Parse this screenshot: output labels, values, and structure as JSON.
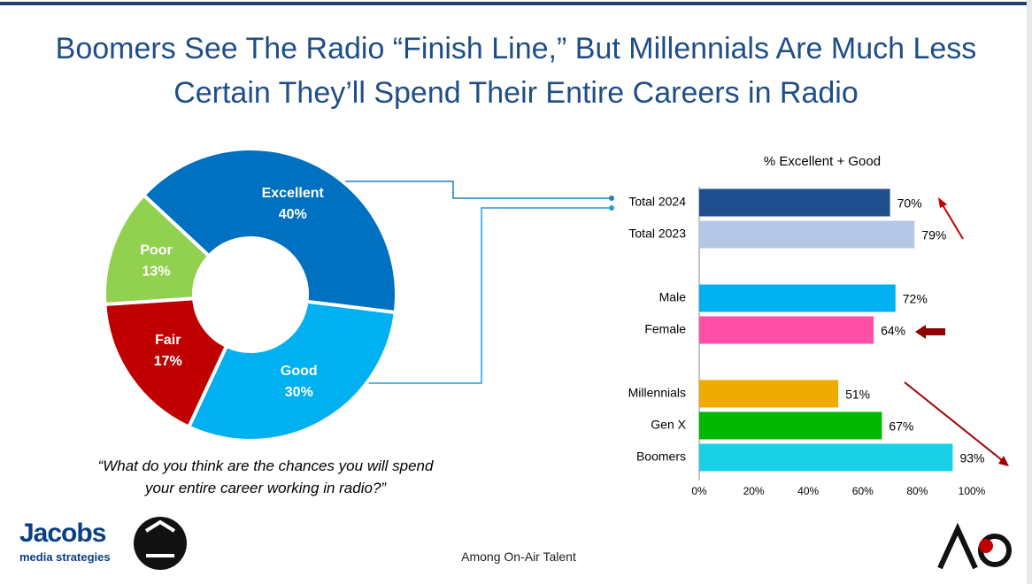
{
  "title": "Boomers See The Radio “Finish Line,” But Millennials Are Much Less Certain They’ll Spend Their Entire Careers in Radio",
  "question": "“What do you think are the chances you will spend your entire career working in radio?”",
  "footer": "Among On-Air Talent",
  "logo": {
    "name": "Jacobs",
    "tagline": "media strategies"
  },
  "chart_data": [
    {
      "type": "donut",
      "categories": [
        "Excellent",
        "Good",
        "Fair",
        "Poor"
      ],
      "values": [
        40,
        30,
        17,
        13
      ],
      "value_labels": [
        "40%",
        "30%",
        "17%",
        "13%"
      ],
      "colors": [
        "#0070c0",
        "#00b0f0",
        "#c00000",
        "#92d050"
      ]
    },
    {
      "type": "hbar",
      "title": "% Excellent + Good",
      "categories": [
        "Total 2024",
        "Total 2023",
        null,
        "Male",
        "Female",
        null,
        "Millennials",
        "Gen X",
        "Boomers"
      ],
      "values": [
        70,
        79,
        null,
        72,
        64,
        null,
        51,
        67,
        93
      ],
      "value_labels": [
        "70%",
        "79%",
        null,
        "72%",
        "64%",
        null,
        "51%",
        "67%",
        "93%"
      ],
      "colors": [
        "#1f4e8c",
        "#b4c7e7",
        null,
        "#00b0f0",
        "#ff4fa7",
        null,
        "#f0ab00",
        "#00b800",
        "#1ad0e6"
      ],
      "xlim": [
        0,
        100
      ],
      "xticks": [
        {
          "value": 0,
          "label": "0%"
        },
        {
          "value": 20,
          "label": "20%"
        },
        {
          "value": 40,
          "label": "40%"
        },
        {
          "value": 60,
          "label": "60%"
        },
        {
          "value": 80,
          "label": "80%"
        },
        {
          "value": 100,
          "label": "100%"
        }
      ]
    }
  ]
}
